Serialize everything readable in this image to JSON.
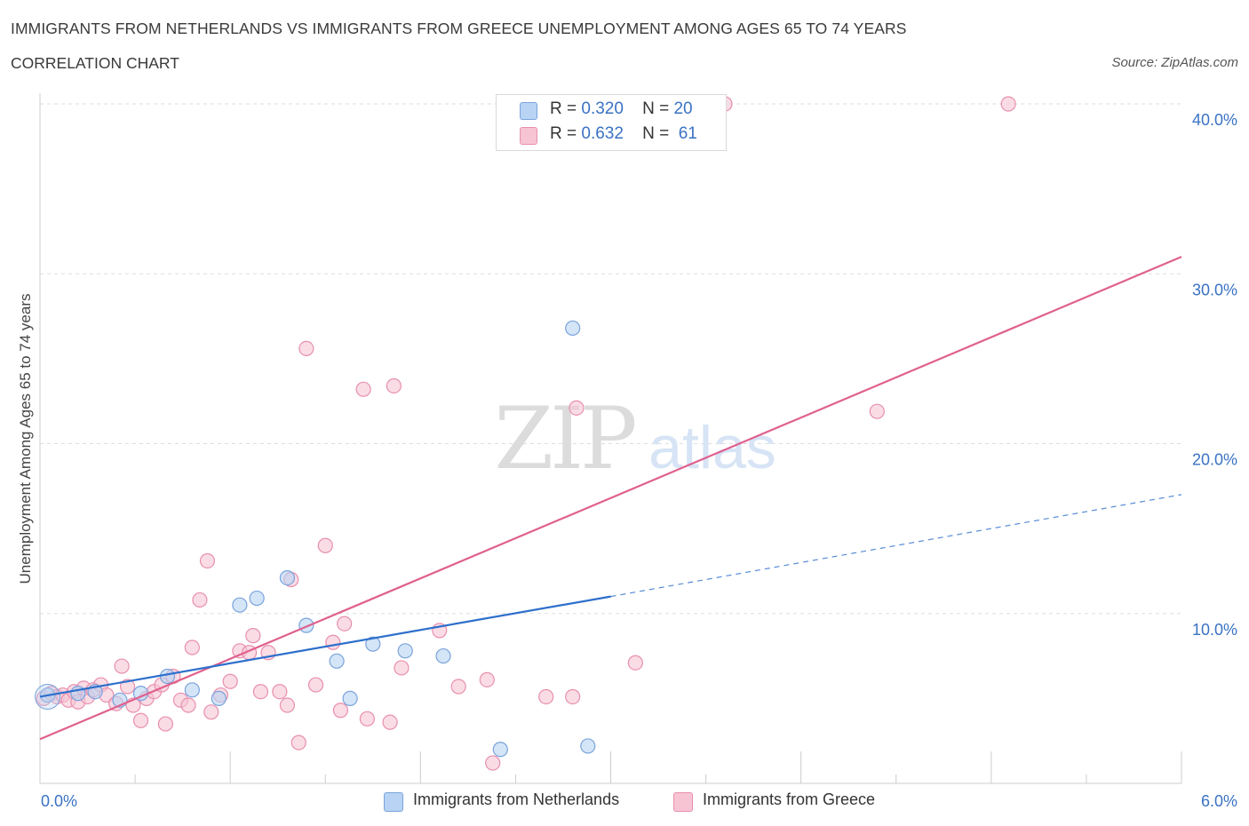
{
  "header": {
    "title": "IMMIGRANTS FROM NETHERLANDS VS IMMIGRANTS FROM GREECE UNEMPLOYMENT AMONG AGES 65 TO 74 YEARS",
    "subtitle": "CORRELATION CHART",
    "source": "Source: ZipAtlas.com"
  },
  "legend": {
    "netherlands": {
      "r_label": "R =",
      "r_value": "0.320",
      "n_label": "N =",
      "n_value": "20"
    },
    "greece": {
      "r_label": "R =",
      "r_value": "0.632",
      "n_label": "N =",
      "n_value": "61"
    }
  },
  "watermark": {
    "zip": "ZIP",
    "atlas": "atlas"
  },
  "colors": {
    "netherlands_fill": "#b8d3f3",
    "netherlands_stroke": "#7aa3dc",
    "netherlands_line": "#2d6fcb",
    "greece_fill": "#f7c4d4",
    "greece_stroke": "#e88fae",
    "greece_line": "#e0608e",
    "axis_label": "#3a72c4",
    "grid": "#dddddd"
  },
  "chart_data": {
    "type": "scatter",
    "title": "IMMIGRANTS FROM NETHERLANDS VS IMMIGRANTS FROM GREECE UNEMPLOYMENT AMONG AGES 65 TO 74 YEARS",
    "xlabel": "",
    "ylabel": "Unemployment Among Ages 65 to 74 years",
    "xlim": [
      0,
      6
    ],
    "ylim": [
      0,
      40
    ],
    "x_tick_labels": [
      "0.0%",
      "6.0%"
    ],
    "y_ticks": [
      10,
      20,
      30,
      40
    ],
    "y_tick_labels": [
      "10.0%",
      "20.0%",
      "30.0%",
      "40.0%"
    ],
    "grid": true,
    "legend_position": "top-center",
    "series": [
      {
        "name": "Immigrants from Netherlands",
        "R": 0.32,
        "N": 20,
        "points": [
          [
            0.04,
            5.2
          ],
          [
            0.29,
            5.4
          ],
          [
            0.42,
            4.9
          ],
          [
            0.53,
            5.3
          ],
          [
            0.67,
            6.3
          ],
          [
            0.8,
            5.5
          ],
          [
            0.94,
            5.0
          ],
          [
            1.05,
            10.5
          ],
          [
            1.14,
            10.9
          ],
          [
            1.3,
            12.1
          ],
          [
            1.4,
            9.3
          ],
          [
            1.56,
            7.2
          ],
          [
            1.63,
            5.0
          ],
          [
            1.75,
            8.2
          ],
          [
            1.92,
            7.8
          ],
          [
            2.12,
            7.5
          ],
          [
            2.42,
            2.0
          ],
          [
            2.8,
            26.8
          ],
          [
            2.88,
            2.2
          ],
          [
            0.2,
            5.3
          ]
        ],
        "trend": {
          "x0": 0.0,
          "y0": 5.1,
          "x1": 3.0,
          "y1": 11.0,
          "x_dash_end": 6.0,
          "y_dash_end": 17.0
        }
      },
      {
        "name": "Immigrants from Greece",
        "R": 0.632,
        "N": 61,
        "points": [
          [
            0.02,
            5.0
          ],
          [
            0.06,
            5.3
          ],
          [
            0.09,
            5.1
          ],
          [
            0.12,
            5.2
          ],
          [
            0.15,
            4.9
          ],
          [
            0.18,
            5.4
          ],
          [
            0.2,
            4.8
          ],
          [
            0.23,
            5.6
          ],
          [
            0.25,
            5.1
          ],
          [
            0.28,
            5.5
          ],
          [
            0.32,
            5.8
          ],
          [
            0.35,
            5.2
          ],
          [
            0.4,
            4.7
          ],
          [
            0.43,
            6.9
          ],
          [
            0.46,
            5.7
          ],
          [
            0.49,
            4.6
          ],
          [
            0.53,
            3.7
          ],
          [
            0.56,
            5.0
          ],
          [
            0.6,
            5.4
          ],
          [
            0.64,
            5.8
          ],
          [
            0.66,
            3.5
          ],
          [
            0.7,
            6.3
          ],
          [
            0.74,
            4.9
          ],
          [
            0.78,
            4.6
          ],
          [
            0.8,
            8.0
          ],
          [
            0.84,
            10.8
          ],
          [
            0.88,
            13.1
          ],
          [
            0.9,
            4.2
          ],
          [
            0.95,
            5.2
          ],
          [
            1.0,
            6.0
          ],
          [
            1.05,
            7.8
          ],
          [
            1.1,
            7.7
          ],
          [
            1.12,
            8.7
          ],
          [
            1.16,
            5.4
          ],
          [
            1.2,
            7.7
          ],
          [
            1.26,
            5.4
          ],
          [
            1.3,
            4.6
          ],
          [
            1.32,
            12.0
          ],
          [
            1.36,
            2.4
          ],
          [
            1.4,
            25.6
          ],
          [
            1.45,
            5.8
          ],
          [
            1.5,
            14.0
          ],
          [
            1.54,
            8.3
          ],
          [
            1.58,
            4.3
          ],
          [
            1.6,
            9.4
          ],
          [
            1.7,
            23.2
          ],
          [
            1.72,
            3.8
          ],
          [
            1.84,
            3.6
          ],
          [
            1.86,
            23.4
          ],
          [
            1.9,
            6.8
          ],
          [
            2.1,
            9.0
          ],
          [
            2.2,
            5.7
          ],
          [
            2.35,
            6.1
          ],
          [
            2.38,
            1.2
          ],
          [
            2.66,
            5.1
          ],
          [
            2.8,
            5.1
          ],
          [
            2.82,
            22.1
          ],
          [
            3.13,
            7.1
          ],
          [
            3.6,
            40.0
          ],
          [
            4.4,
            21.9
          ],
          [
            5.09,
            40.0
          ]
        ],
        "trend": {
          "x0": 0.0,
          "y0": 2.6,
          "x1": 6.0,
          "y1": 31.0
        }
      }
    ]
  },
  "bottom_legend": {
    "netherlands_label": "Immigrants from Netherlands",
    "greece_label": "Immigrants from Greece"
  }
}
